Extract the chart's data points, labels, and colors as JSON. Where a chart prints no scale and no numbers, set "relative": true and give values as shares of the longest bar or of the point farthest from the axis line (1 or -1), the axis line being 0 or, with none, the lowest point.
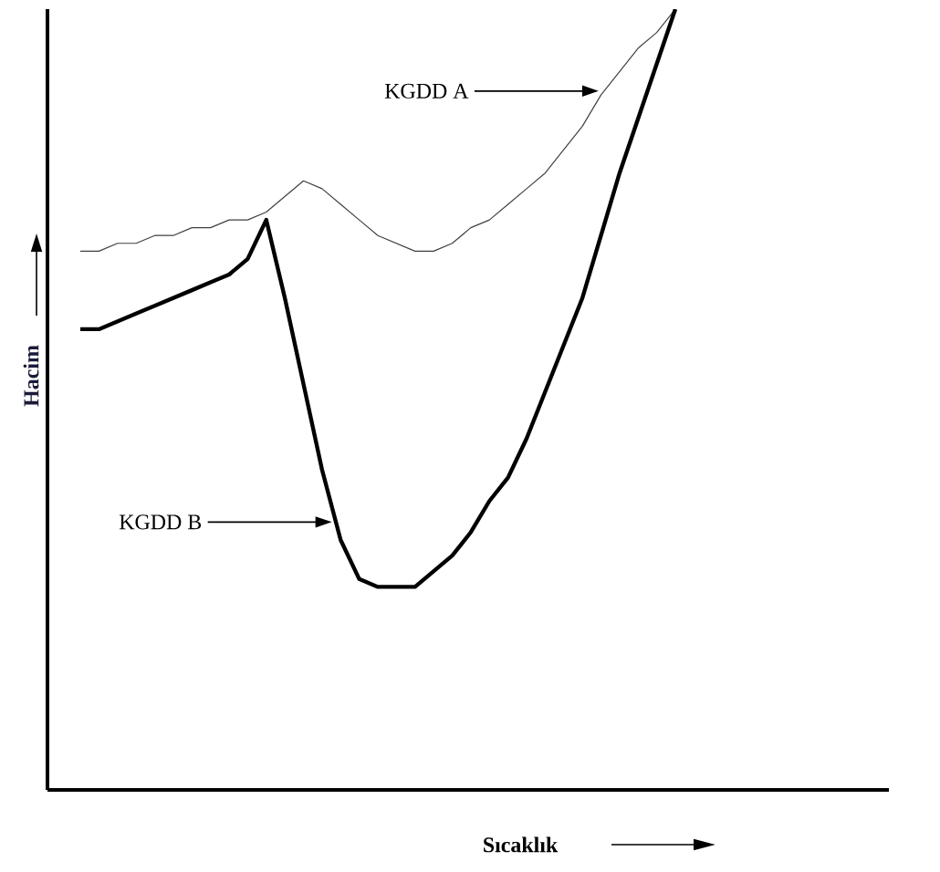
{
  "chart_data": {
    "type": "line",
    "relative": true,
    "xlabel": "Sıcaklık",
    "ylabel": "Hacim",
    "marker": "none",
    "line_style": "solid",
    "categories": [
      null,
      null,
      null,
      null,
      null,
      null,
      null,
      null,
      null,
      null,
      null,
      null,
      null,
      null,
      null,
      null,
      null,
      null,
      null,
      null,
      null,
      null,
      null,
      null,
      null,
      null,
      null,
      null,
      null,
      null,
      null,
      null,
      null
    ],
    "series": [
      {
        "color": "#404040",
        "values": [
          0.69,
          0.69,
          0.7,
          0.7,
          0.71,
          0.71,
          0.72,
          0.72,
          0.73,
          0.73,
          0.74,
          0.76,
          0.78,
          0.77,
          0.75,
          0.73,
          0.71,
          0.7,
          0.69,
          0.69,
          0.7,
          0.72,
          0.73,
          0.75,
          0.77,
          0.79,
          0.82,
          0.85,
          0.89,
          0.92,
          0.95,
          0.97,
          1.0
        ]
      },
      {
        "color": "#000000",
        "values": [
          0.59,
          0.59,
          0.6,
          0.61,
          0.62,
          0.63,
          0.64,
          0.65,
          0.66,
          0.68,
          0.73,
          0.63,
          0.52,
          0.41,
          0.32,
          0.27,
          0.26,
          0.26,
          0.26,
          0.28,
          0.3,
          0.33,
          0.37,
          0.4,
          0.45,
          0.51,
          0.57,
          0.63,
          0.71,
          0.79,
          0.86,
          0.93,
          1.0
        ]
      }
    ],
    "annotations": [
      "KGDD A",
      "KGDD B"
    ]
  }
}
